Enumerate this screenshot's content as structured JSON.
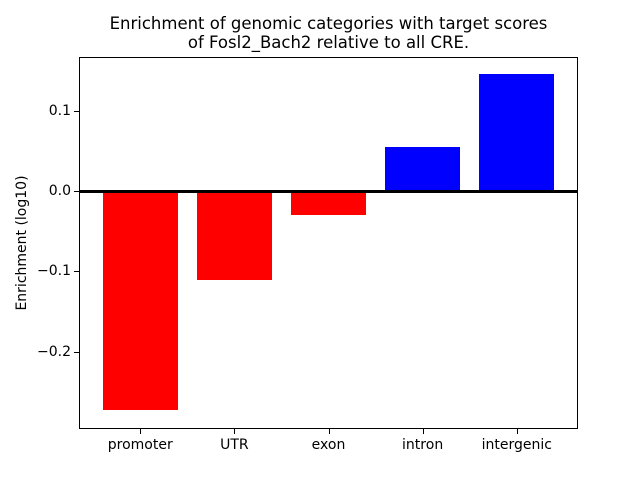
{
  "figure": {
    "title_lines": [
      "Enrichment of genomic categories with target scores",
      "of Fosl2_Bach2 relative to all CRE."
    ]
  },
  "chart_data": {
    "type": "bar",
    "title": "Enrichment of genomic categories with target scores of Fosl2_Bach2 relative to all CRE.",
    "xlabel": "",
    "ylabel": "Enrichment (log10)",
    "categories": [
      "promoter",
      "UTR",
      "exon",
      "intron",
      "intergenic"
    ],
    "values": [
      -0.272,
      -0.11,
      -0.03,
      0.055,
      0.146
    ],
    "bar_colors": [
      "#ff0000",
      "#ff0000",
      "#ff0000",
      "#0000ff",
      "#0000ff"
    ],
    "negative_color": "#ff0000",
    "positive_color": "#0000ff",
    "bar_width_fraction": 0.8,
    "xlim": [
      -0.64,
      4.64
    ],
    "ylim": [
      -0.295,
      0.166
    ],
    "yticks": [
      0.1,
      0.0,
      -0.1,
      -0.2
    ],
    "ytick_labels": [
      "0.1",
      "0.0",
      "−0.1",
      "−0.2"
    ],
    "zero_line": true,
    "grid": false,
    "legend": null,
    "background": "#ffffff",
    "axis_color": "#000000"
  }
}
